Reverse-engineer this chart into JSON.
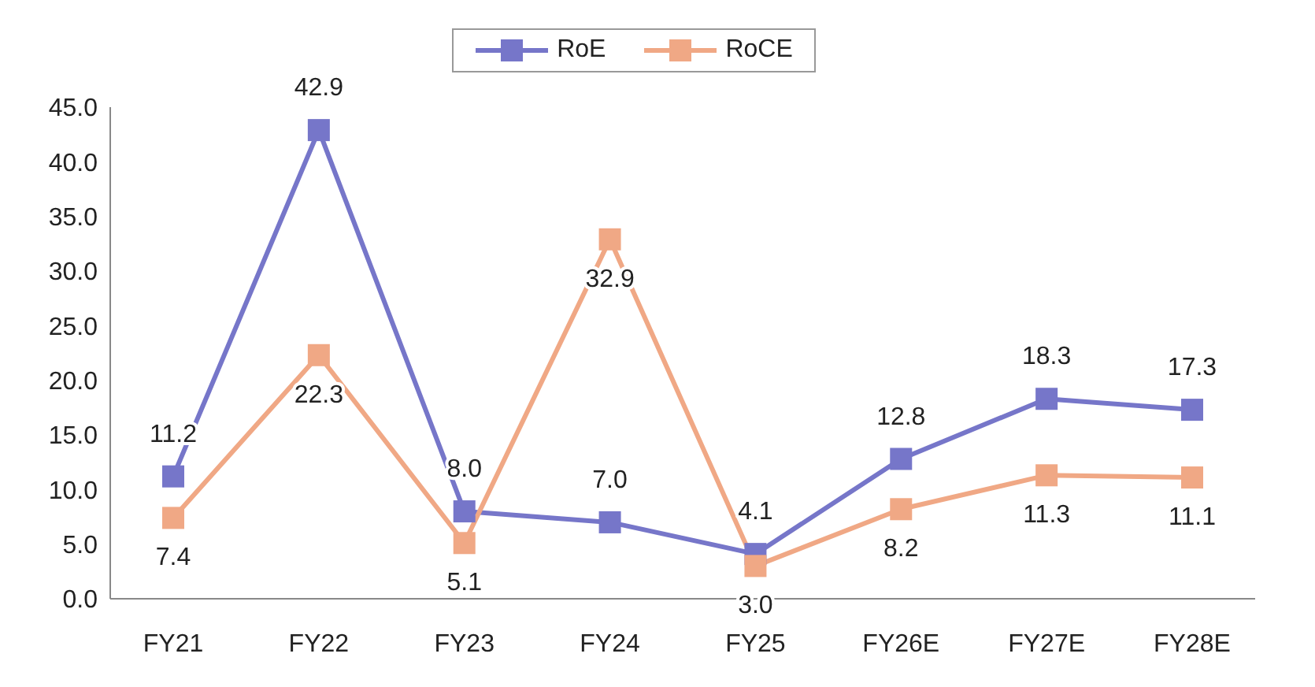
{
  "chart_data": {
    "type": "line",
    "categories": [
      "FY21",
      "FY22",
      "FY23",
      "FY24",
      "FY25",
      "FY26E",
      "FY27E",
      "FY28E"
    ],
    "series": [
      {
        "name": "RoE",
        "color": "#7676c9",
        "values": [
          11.2,
          42.9,
          8.0,
          7.0,
          4.1,
          12.8,
          18.3,
          17.3
        ],
        "value_labels": [
          "11.2",
          "42.9",
          "8.0",
          "7.0",
          "4.1",
          "12.8",
          "18.3",
          "17.3"
        ]
      },
      {
        "name": "RoCE",
        "color": "#f0a885",
        "values": [
          7.4,
          22.3,
          5.1,
          32.9,
          3.0,
          8.2,
          11.3,
          11.1
        ],
        "value_labels": [
          "7.4",
          "22.3",
          "5.1",
          "32.9",
          "3.0",
          "8.2",
          "11.3",
          "11.1"
        ]
      }
    ],
    "ylim": [
      0,
      45
    ],
    "yticks": [
      {
        "value": 0,
        "label": "0.0"
      },
      {
        "value": 5,
        "label": "5.0"
      },
      {
        "value": 10,
        "label": "10.0"
      },
      {
        "value": 15,
        "label": "15.0"
      },
      {
        "value": 20,
        "label": "20.0"
      },
      {
        "value": 25,
        "label": "25.0"
      },
      {
        "value": 30,
        "label": "30.0"
      },
      {
        "value": 35,
        "label": "35.0"
      },
      {
        "value": 40,
        "label": "40.0"
      },
      {
        "value": 45,
        "label": "45.0"
      }
    ],
    "grid": false,
    "legend": "top",
    "marker": "square",
    "line_style": "solid"
  }
}
